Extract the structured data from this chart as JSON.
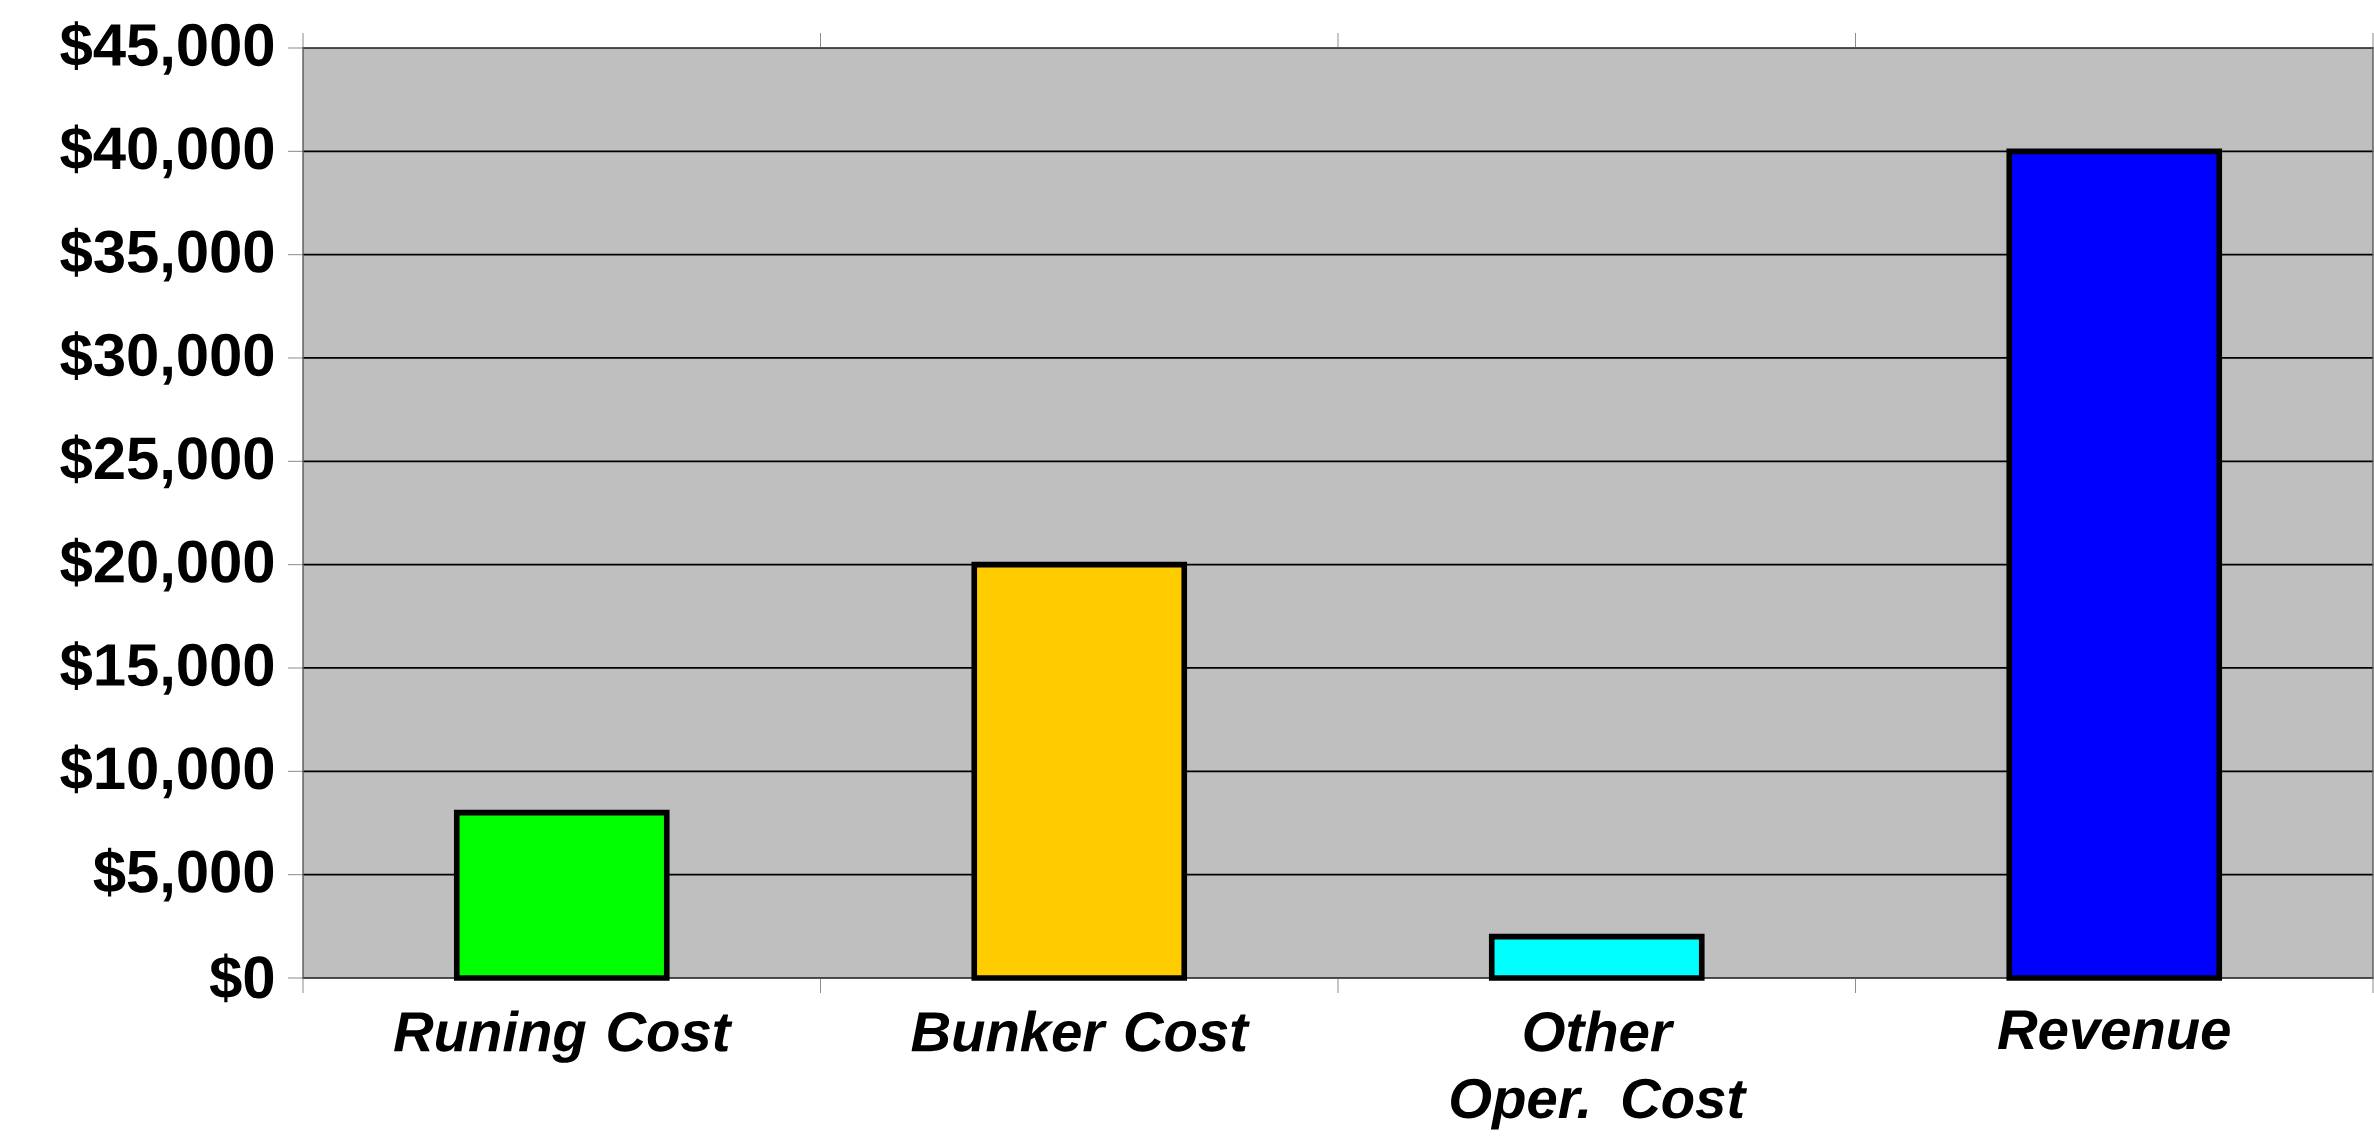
{
  "chart_data": {
    "type": "bar",
    "categories": [
      "Runing Cost",
      "Bunker Cost",
      "Other Oper. Cost",
      "Revenue"
    ],
    "values": [
      8000,
      20000,
      2000,
      40000
    ],
    "colors": [
      "#00ff00",
      "#ffcc00",
      "#00ffff",
      "#0000ff"
    ],
    "ylim": [
      0,
      45000
    ],
    "yticks": [
      {
        "value": 0,
        "label": "$0"
      },
      {
        "value": 5000,
        "label": "$5,000"
      },
      {
        "value": 10000,
        "label": "$10,000"
      },
      {
        "value": 15000,
        "label": "$15,000"
      },
      {
        "value": 20000,
        "label": "$20,000"
      },
      {
        "value": 25000,
        "label": "$25,000"
      },
      {
        "value": 30000,
        "label": "$30,000"
      },
      {
        "value": 35000,
        "label": "$35,000"
      },
      {
        "value": 40000,
        "label": "$40,000"
      },
      {
        "value": 45000,
        "label": "$45,000"
      }
    ],
    "grid": "y"
  }
}
